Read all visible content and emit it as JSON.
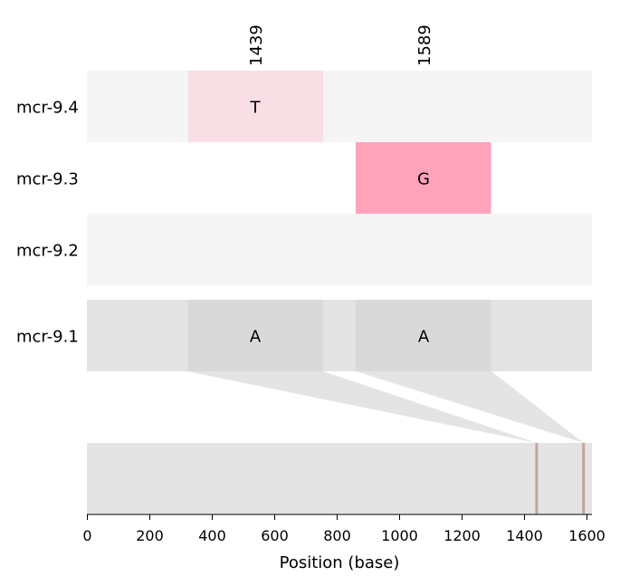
{
  "chart_data": {
    "type": "alignment",
    "xlabel": "Position (base)",
    "xlim": [
      0,
      1620
    ],
    "xticks": [
      0,
      200,
      400,
      600,
      800,
      1000,
      1200,
      1400,
      1600
    ],
    "tracks": [
      {
        "name": "mcr-9.4",
        "start": 0,
        "end": 1620,
        "color": "#f5f5f5"
      },
      {
        "name": "mcr-9.3",
        "start": 0,
        "end": 1620,
        "color": "#ffffff"
      },
      {
        "name": "mcr-9.2",
        "start": 0,
        "end": 1620,
        "color": "#f5f5f5"
      },
      {
        "name": "mcr-9.1",
        "start": 0,
        "end": 1620,
        "color": "#e4e4e4"
      }
    ],
    "variant_positions": [
      1439,
      1589
    ],
    "variants": [
      {
        "track": "mcr-9.4",
        "position": 1439,
        "base": "T",
        "color": "#f7dfe5"
      },
      {
        "track": "mcr-9.3",
        "position": 1589,
        "base": "G",
        "color": "#ffa3bb"
      },
      {
        "track": "mcr-9.1",
        "position": 1439,
        "base": "A",
        "color": "#d9d9d9"
      },
      {
        "track": "mcr-9.1",
        "position": 1589,
        "base": "A",
        "color": "#d9d9d9"
      }
    ],
    "overview": {
      "start": 0,
      "end": 1620,
      "color": "#e4e4e4",
      "marker_color": "#c4a49e"
    }
  }
}
